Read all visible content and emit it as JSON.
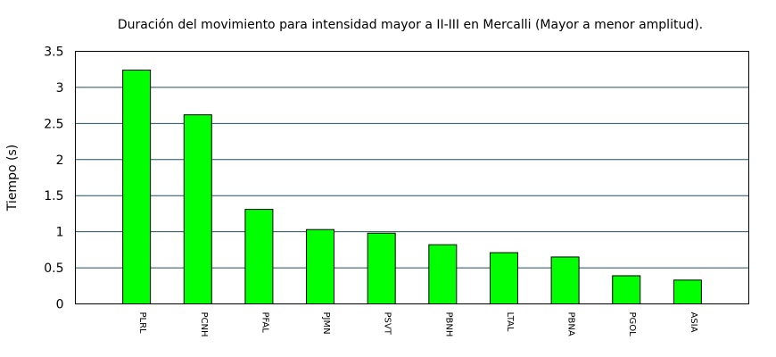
{
  "chart_data": {
    "type": "bar",
    "title": "Duración del movimiento para intensidad mayor a II-III en Mercalli (Mayor a menor amplitud).",
    "xlabel": "",
    "ylabel": "Tiempo (s)",
    "ylim": [
      0,
      3.5
    ],
    "yticks": [
      "0",
      "0.5",
      "1",
      "1.5",
      "2",
      "2.5",
      "3",
      "3.5"
    ],
    "grid": "horizontal",
    "legend": "none",
    "bar_color": "#00ff00",
    "grid_color": "#1f4f5f",
    "categories": [
      "PLRL",
      "PCNH",
      "PFAL",
      "PJMN",
      "PSVT",
      "PBNH",
      "LTAL",
      "PBNA",
      "PGOL",
      "ASIA"
    ],
    "values": [
      3.24,
      2.62,
      1.31,
      1.03,
      0.98,
      0.82,
      0.71,
      0.65,
      0.39,
      0.33
    ]
  }
}
